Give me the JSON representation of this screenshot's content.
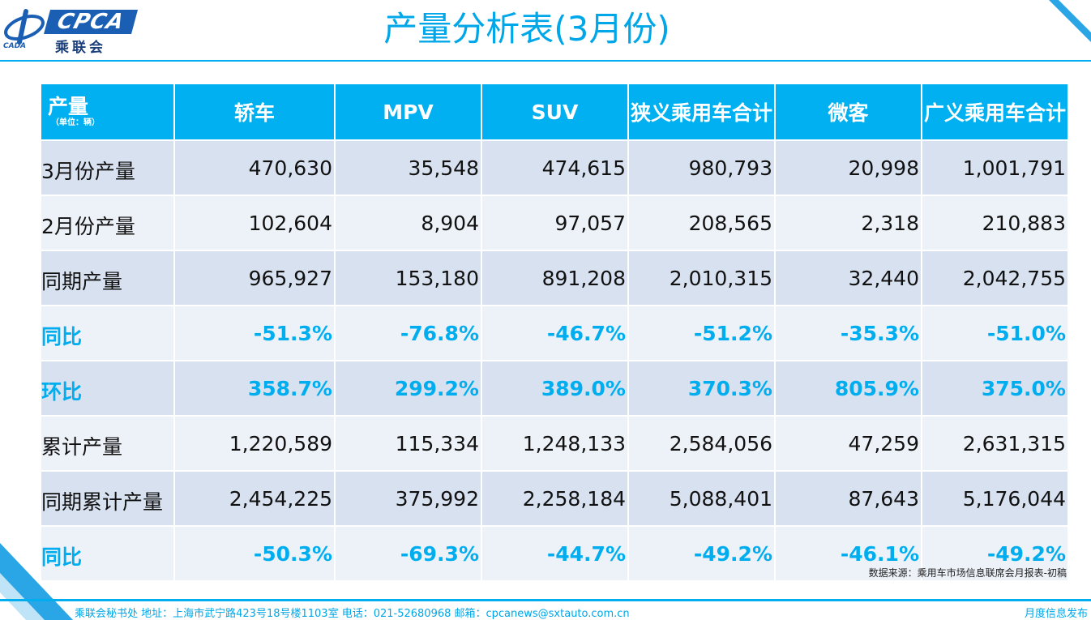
{
  "brand": {
    "logo_text": "CPCA",
    "logo_sub": "乘联会",
    "logo_mark": "CADA"
  },
  "title": "产量分析表(3月份)",
  "table": {
    "header": {
      "label": "产量",
      "unit": "（单位：辆）"
    },
    "columns": [
      "轿车",
      "MPV",
      "SUV",
      "狭义乘用车合计",
      "微客",
      "广义乘用车合计"
    ],
    "rows": [
      {
        "label": "3月份产量",
        "values": [
          "470,630",
          "35,548",
          "474,615",
          "980,793",
          "20,998",
          "1,001,791"
        ],
        "type": "count"
      },
      {
        "label": "2月份产量",
        "values": [
          "102,604",
          "8,904",
          "97,057",
          "208,565",
          "2,318",
          "210,883"
        ],
        "type": "count"
      },
      {
        "label": "同期产量",
        "values": [
          "965,927",
          "153,180",
          "891,208",
          "2,010,315",
          "32,440",
          "2,042,755"
        ],
        "type": "count"
      },
      {
        "label": "同比",
        "values": [
          "-51.3%",
          "-76.8%",
          "-46.7%",
          "-51.2%",
          "-35.3%",
          "-51.0%"
        ],
        "type": "pct"
      },
      {
        "label": "环比",
        "values": [
          "358.7%",
          "299.2%",
          "389.0%",
          "370.3%",
          "805.9%",
          "375.0%"
        ],
        "type": "pct"
      },
      {
        "label": "累计产量",
        "values": [
          "1,220,589",
          "115,334",
          "1,248,133",
          "2,584,056",
          "47,259",
          "2,631,315"
        ],
        "type": "count"
      },
      {
        "label": "同期累计产量",
        "values": [
          "2,454,225",
          "375,992",
          "2,258,184",
          "5,088,401",
          "87,643",
          "5,176,044"
        ],
        "type": "count"
      },
      {
        "label": "同比",
        "values": [
          "-50.3%",
          "-69.3%",
          "-44.7%",
          "-49.2%",
          "-46.1%",
          "-49.2%"
        ],
        "type": "pct"
      }
    ]
  },
  "source": "数据来源：乘用车市场信息联席会月报表-初稿",
  "footer": {
    "left": "乘联会秘书处   地址：上海市武宁路423号18号楼1103室  电话：021-52680968   邮箱：cpcanews@sxtauto.com.cn",
    "right": "月度信息发布"
  },
  "colors": {
    "accent": "#00b0f0",
    "row_odd": "#d7e1f0",
    "row_even": "#edf1f8",
    "pct_text": "#00aeef"
  }
}
